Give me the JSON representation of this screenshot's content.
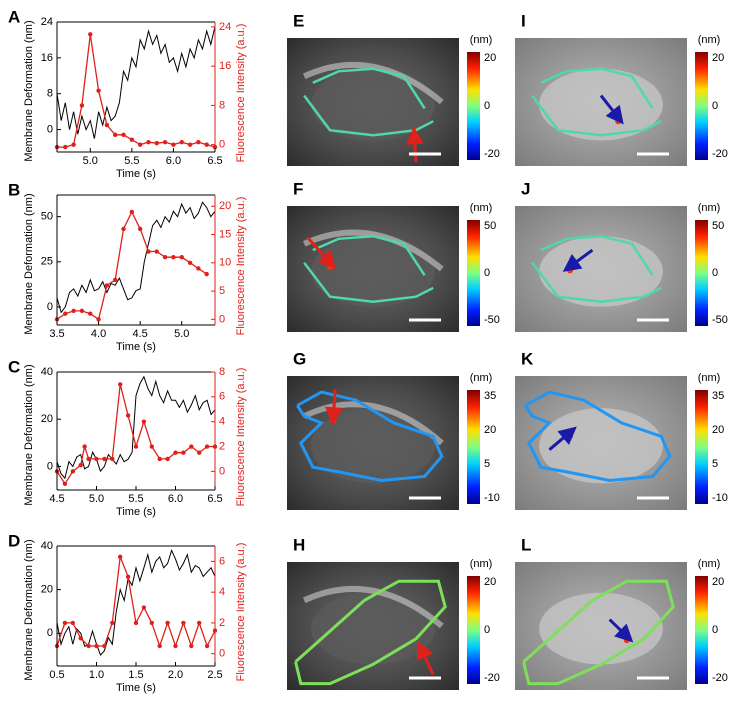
{
  "chart_data": [
    {
      "type": "line",
      "panel": "A",
      "xlabel": "Time (s)",
      "ylabel": "Membrane Deformation (nm)",
      "y2label": "Fluorescence Intensity (a.u.)",
      "xlim": [
        4.6,
        6.5
      ],
      "xticks": [
        {
          "value": 5,
          "label": "5.0"
        },
        5.5,
        {
          "value": 6,
          "label": "6.0"
        },
        6.5
      ],
      "ylim": [
        -5,
        24
      ],
      "yticks": [
        0,
        8,
        16,
        24
      ],
      "y2lim": [
        -1.5,
        25
      ],
      "y2ticks": [
        0,
        8,
        16,
        24
      ],
      "series": [
        {
          "color": "#000000",
          "x": [
            4.6,
            4.65,
            4.7,
            4.75,
            4.8,
            4.85,
            4.9,
            4.95,
            5.0,
            5.05,
            5.1,
            5.15,
            5.2,
            5.25,
            5.3,
            5.35,
            5.4,
            5.45,
            5.5,
            5.55,
            5.6,
            5.65,
            5.7,
            5.75,
            5.8,
            5.85,
            5.9,
            5.95,
            6.0,
            6.05,
            6.1,
            6.15,
            6.2,
            6.25,
            6.3,
            6.35,
            6.4,
            6.45,
            6.5
          ],
          "values": [
            8,
            2,
            6,
            0,
            4,
            -1,
            3,
            0,
            2,
            -2,
            4,
            1,
            5,
            2,
            3,
            6,
            13,
            11,
            16,
            14,
            20,
            18,
            22,
            19,
            21,
            17,
            19,
            15,
            16,
            13,
            17,
            14,
            18,
            16,
            20,
            18,
            22,
            19,
            23
          ]
        },
        {
          "color": "#e0201b",
          "axis": "y2",
          "markers": true,
          "x": [
            4.6,
            4.7,
            4.8,
            4.9,
            5.0,
            5.1,
            5.2,
            5.3,
            5.4,
            5.5,
            5.6,
            5.7,
            5.8,
            5.9,
            6.0,
            6.1,
            6.2,
            6.3,
            6.4,
            6.5
          ],
          "values": [
            -0.5,
            -0.5,
            0,
            8,
            22.5,
            11,
            4,
            2,
            2,
            1,
            0,
            0.5,
            0.3,
            0.5,
            0,
            0.5,
            0,
            0.5,
            0,
            -0.5
          ]
        }
      ]
    },
    {
      "type": "line",
      "panel": "B",
      "xlabel": "Time (s)",
      "ylabel": "Membrane Deformation (nm)",
      "y2label": "Fluorescence Intensity (a.u.)",
      "xlim": [
        3.5,
        5.4
      ],
      "xticks": [
        3.5,
        {
          "value": 4,
          "label": "4.0"
        },
        4.5,
        {
          "value": 5,
          "label": "5.0"
        }
      ],
      "ylim": [
        -10,
        62
      ],
      "yticks": [
        0,
        25,
        50
      ],
      "y2lim": [
        -1,
        22
      ],
      "y2ticks": [
        0,
        5,
        10,
        15,
        20
      ],
      "series": [
        {
          "color": "#000000",
          "x": [
            3.5,
            3.55,
            3.6,
            3.65,
            3.7,
            3.75,
            3.8,
            3.85,
            3.9,
            3.95,
            4.0,
            4.05,
            4.1,
            4.15,
            4.2,
            4.25,
            4.3,
            4.35,
            4.4,
            4.45,
            4.5,
            4.55,
            4.6,
            4.65,
            4.7,
            4.75,
            4.8,
            4.85,
            4.9,
            4.95,
            5.0,
            5.05,
            5.1,
            5.15,
            5.2,
            5.25,
            5.3,
            5.35,
            5.4
          ],
          "values": [
            5,
            -3,
            0,
            8,
            10,
            6,
            12,
            8,
            15,
            9,
            10,
            14,
            8,
            13,
            12,
            16,
            10,
            4,
            5,
            9,
            10,
            25,
            35,
            45,
            48,
            44,
            50,
            47,
            53,
            50,
            57,
            52,
            55,
            49,
            52,
            58,
            55,
            50,
            53
          ]
        },
        {
          "color": "#e0201b",
          "axis": "y2",
          "markers": true,
          "x": [
            3.5,
            3.6,
            3.7,
            3.8,
            3.9,
            4.0,
            4.1,
            4.2,
            4.3,
            4.4,
            4.5,
            4.6,
            4.7,
            4.8,
            4.9,
            5.0,
            5.1,
            5.2,
            5.3
          ],
          "values": [
            0,
            1,
            1.5,
            1.5,
            1,
            0,
            6,
            7,
            16,
            19,
            16,
            12,
            12,
            11,
            11,
            11,
            10,
            9,
            8
          ]
        }
      ]
    },
    {
      "type": "line",
      "panel": "C",
      "xlabel": "Time (s)",
      "ylabel": "Membrane Deformation (nm)",
      "y2label": "Fluorescence Intensity (a.u.)",
      "xlim": [
        4.5,
        6.5
      ],
      "xticks": [
        4.5,
        {
          "value": 5,
          "label": "5.0"
        },
        5.5,
        {
          "value": 6,
          "label": "6.0"
        },
        6.5
      ],
      "ylim": [
        -10,
        40
      ],
      "yticks": [
        0,
        20,
        40
      ],
      "y2lim": [
        -1.5,
        8
      ],
      "y2ticks": [
        0,
        2,
        4,
        6,
        8
      ],
      "series": [
        {
          "color": "#000000",
          "x": [
            4.5,
            4.55,
            4.6,
            4.65,
            4.7,
            4.75,
            4.8,
            4.85,
            4.9,
            4.95,
            5.0,
            5.05,
            5.1,
            5.15,
            5.2,
            5.25,
            5.3,
            5.35,
            5.4,
            5.45,
            5.5,
            5.55,
            5.6,
            5.65,
            5.7,
            5.75,
            5.8,
            5.85,
            5.9,
            5.95,
            6.0,
            6.05,
            6.1,
            6.15,
            6.2,
            6.25,
            6.3,
            6.35,
            6.4,
            6.45,
            6.5
          ],
          "values": [
            2,
            -3,
            -5,
            2,
            0,
            4,
            5,
            -1,
            0,
            6,
            3,
            -2,
            0,
            5,
            3,
            1,
            5,
            2,
            3,
            6,
            30,
            35,
            38,
            33,
            30,
            36,
            30,
            27,
            32,
            28,
            28,
            25,
            28,
            23,
            26,
            30,
            24,
            27,
            28,
            22,
            24
          ]
        },
        {
          "color": "#e0201b",
          "axis": "y2",
          "markers": true,
          "x": [
            4.5,
            4.6,
            4.7,
            4.8,
            4.85,
            4.9,
            5.0,
            5.1,
            5.2,
            5.3,
            5.4,
            5.5,
            5.6,
            5.7,
            5.8,
            5.9,
            6.0,
            6.1,
            6.2,
            6.3,
            6.4,
            6.5
          ],
          "values": [
            0,
            -1,
            0,
            0.5,
            2,
            1,
            1,
            1,
            1,
            7,
            4.5,
            2,
            4,
            2,
            1,
            1,
            1.5,
            1.5,
            2,
            1.5,
            2,
            2
          ]
        }
      ]
    },
    {
      "type": "line",
      "panel": "D",
      "xlabel": "Time (s)",
      "ylabel": "Membrane Deformation (nm)",
      "y2label": "Fluorescence Intensity (a.u.)",
      "xlim": [
        0.5,
        2.5
      ],
      "xticks": [
        0.5,
        {
          "value": 1,
          "label": "1.0"
        },
        1.5,
        {
          "value": 2,
          "label": "2.0"
        },
        2.5
      ],
      "ylim": [
        -15,
        40
      ],
      "yticks": [
        0,
        20,
        40
      ],
      "y2lim": [
        -0.8,
        7
      ],
      "y2ticks": [
        0,
        2,
        4,
        6
      ],
      "series": [
        {
          "color": "#000000",
          "x": [
            0.5,
            0.55,
            0.6,
            0.65,
            0.7,
            0.75,
            0.8,
            0.85,
            0.9,
            0.95,
            1.0,
            1.05,
            1.1,
            1.15,
            1.2,
            1.25,
            1.3,
            1.35,
            1.4,
            1.45,
            1.5,
            1.55,
            1.6,
            1.65,
            1.7,
            1.75,
            1.8,
            1.85,
            1.9,
            1.95,
            2.0,
            2.05,
            2.1,
            2.15,
            2.2,
            2.25,
            2.3,
            2.35,
            2.4,
            2.45,
            2.5
          ],
          "values": [
            5,
            -5,
            0,
            3,
            -5,
            2,
            0,
            -6,
            -5,
            1,
            -5,
            -10,
            -8,
            -2,
            -5,
            10,
            20,
            15,
            25,
            22,
            30,
            24,
            30,
            36,
            28,
            33,
            35,
            30,
            32,
            38,
            34,
            29,
            32,
            36,
            28,
            31,
            30,
            26,
            28,
            30,
            26
          ]
        },
        {
          "color": "#e0201b",
          "axis": "y2",
          "markers": true,
          "x": [
            0.5,
            0.6,
            0.7,
            0.8,
            0.9,
            1.0,
            1.1,
            1.2,
            1.3,
            1.4,
            1.5,
            1.6,
            1.7,
            1.8,
            1.9,
            2.0,
            2.1,
            2.2,
            2.3,
            2.4,
            2.5
          ],
          "values": [
            0.5,
            2,
            2,
            1,
            0.5,
            0.5,
            0.5,
            2,
            6.3,
            5,
            2,
            3,
            2,
            0.5,
            2,
            0.5,
            2,
            0.5,
            2,
            0.5,
            1.5
          ]
        }
      ]
    }
  ],
  "images": [
    {
      "panel": "E",
      "unit": "(nm)",
      "colorbar_ticks": [
        20,
        0,
        -20
      ]
    },
    {
      "panel": "F",
      "unit": "(nm)",
      "colorbar_ticks": [
        50,
        0,
        -50
      ]
    },
    {
      "panel": "G",
      "unit": "(nm)",
      "colorbar_ticks": [
        35,
        20,
        5,
        -10
      ]
    },
    {
      "panel": "H",
      "unit": "(nm)",
      "colorbar_ticks": [
        20,
        0,
        -20
      ]
    },
    {
      "panel": "I",
      "unit": "(nm)",
      "colorbar_ticks": [
        20,
        0,
        -20
      ]
    },
    {
      "panel": "J",
      "unit": "(nm)",
      "colorbar_ticks": [
        50,
        0,
        -50
      ]
    },
    {
      "panel": "K",
      "unit": "(nm)",
      "colorbar_ticks": [
        35,
        20,
        5,
        -10
      ]
    },
    {
      "panel": "L",
      "unit": "(nm)",
      "colorbar_ticks": [
        20,
        0,
        -20
      ]
    }
  ]
}
